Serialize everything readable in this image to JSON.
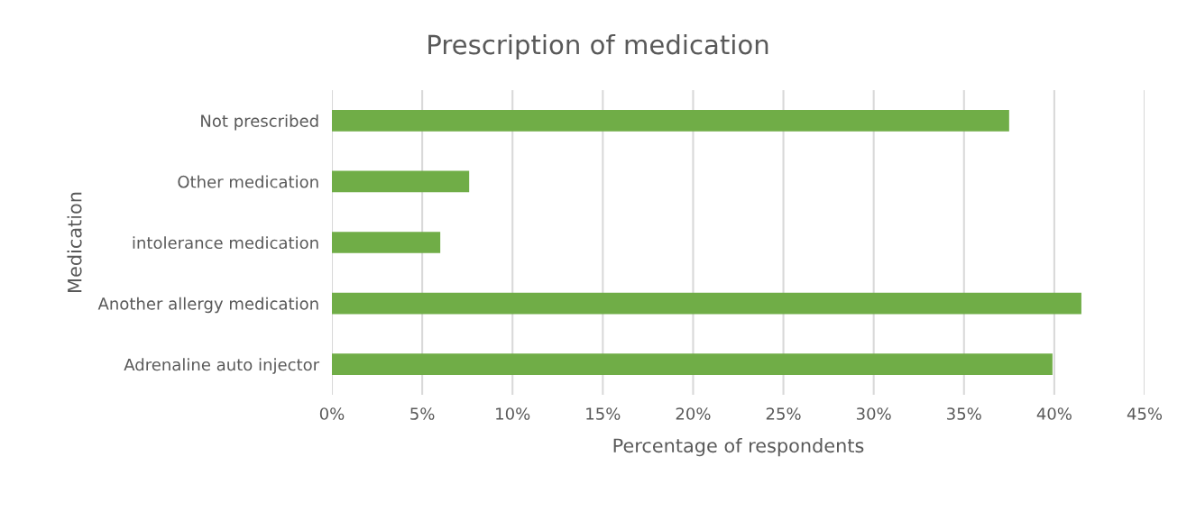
{
  "chart_data": {
    "type": "bar",
    "orientation": "horizontal",
    "title": "Prescription of medication",
    "xlabel": "Percentage of respondents",
    "ylabel": "Medication",
    "categories": [
      "Not prescribed",
      "Other medication",
      "intolerance medication",
      "Another allergy medication",
      "Adrenaline auto injector"
    ],
    "values": [
      37.5,
      7.6,
      6.0,
      41.5,
      39.9
    ],
    "color": "#70ad47",
    "xlim": [
      0,
      45
    ],
    "xticks": [
      {
        "value": 0,
        "label": "0%"
      },
      {
        "value": 5,
        "label": "5%"
      },
      {
        "value": 10,
        "label": "10%"
      },
      {
        "value": 15,
        "label": "15%"
      },
      {
        "value": 20,
        "label": "20%"
      },
      {
        "value": 25,
        "label": "25%"
      },
      {
        "value": 30,
        "label": "30%"
      },
      {
        "value": 35,
        "label": "35%"
      },
      {
        "value": 40,
        "label": "40%"
      },
      {
        "value": 45,
        "label": "45%"
      }
    ],
    "grid": "x",
    "legend": false
  }
}
